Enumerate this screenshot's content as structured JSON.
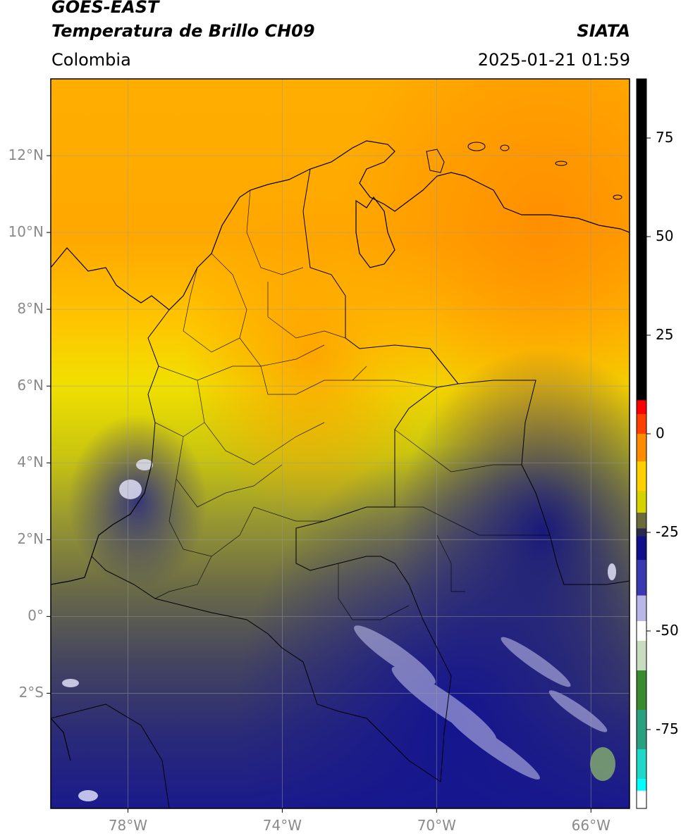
{
  "header": {
    "satellite": "GOES-EAST",
    "product": "Temperatura de Brillo CH09",
    "source": "SIATA",
    "region": "Colombia",
    "datetime": "2025-01-21 01:59"
  },
  "map": {
    "lon_range": [
      -80,
      -65
    ],
    "lat_range": [
      -5,
      14
    ],
    "lat_ticks": [
      {
        "label": "12°N",
        "lat": 12
      },
      {
        "label": "10°N",
        "lat": 10
      },
      {
        "label": "8°N",
        "lat": 8
      },
      {
        "label": "6°N",
        "lat": 6
      },
      {
        "label": "4°N",
        "lat": 4
      },
      {
        "label": "2°N",
        "lat": 2
      },
      {
        "label": "0°",
        "lat": 0
      },
      {
        "label": "2°S",
        "lat": -2
      }
    ],
    "lon_ticks": [
      {
        "label": "78°W",
        "lon": -78
      },
      {
        "label": "74°W",
        "lon": -74
      },
      {
        "label": "70°W",
        "lon": -70
      },
      {
        "label": "66°W",
        "lon": -66
      }
    ],
    "grid": true
  },
  "colorbar": {
    "range": [
      -95,
      90
    ],
    "ticks": [
      {
        "label": "75",
        "value": 75
      },
      {
        "label": "50",
        "value": 50
      },
      {
        "label": "25",
        "value": 25
      },
      {
        "label": "0",
        "value": 0
      },
      {
        "label": "-25",
        "value": -25
      },
      {
        "label": "-50",
        "value": -50
      },
      {
        "label": "-75",
        "value": -75
      }
    ],
    "stops": [
      {
        "value": 90,
        "color": "#000000"
      },
      {
        "value": 9,
        "color": "#000000"
      },
      {
        "value": 8,
        "color": "#ff0000"
      },
      {
        "value": 2,
        "color": "#ff4000"
      },
      {
        "value": -2,
        "color": "#ff8c00"
      },
      {
        "value": -12,
        "color": "#ffd000"
      },
      {
        "value": -17,
        "color": "#d6d200"
      },
      {
        "value": -23,
        "color": "#6a6a3a"
      },
      {
        "value": -25,
        "color": "#2a2a50"
      },
      {
        "value": -27,
        "color": "#10108a"
      },
      {
        "value": -37,
        "color": "#3a3ab0"
      },
      {
        "value": -45,
        "color": "#b8b8e8"
      },
      {
        "value": -50,
        "color": "#ffffff"
      },
      {
        "value": -55,
        "color": "#c8dcc0"
      },
      {
        "value": -65,
        "color": "#3a8a30"
      },
      {
        "value": -75,
        "color": "#2aa080"
      },
      {
        "value": -85,
        "color": "#20d8c8"
      },
      {
        "value": -90,
        "color": "#00ffff"
      },
      {
        "value": -91,
        "color": "#ffffff"
      },
      {
        "value": -95,
        "color": "#ffffff"
      }
    ]
  }
}
